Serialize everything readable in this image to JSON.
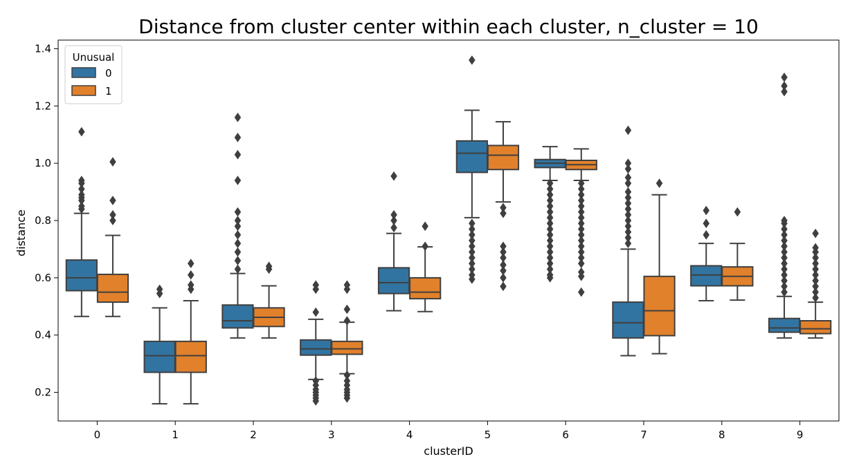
{
  "chart_data": {
    "type": "boxplot",
    "title": "Distance from cluster center within each cluster, n_cluster = 10",
    "xlabel": "clusterID",
    "ylabel": "distance",
    "ylim": [
      0.1,
      1.43
    ],
    "yticks": [
      "0.2",
      "0.4",
      "0.6",
      "0.8",
      "1.0",
      "1.2",
      "1.4"
    ],
    "categories": [
      "0",
      "1",
      "2",
      "3",
      "4",
      "5",
      "6",
      "7",
      "8",
      "9"
    ],
    "grid": false,
    "legend": {
      "title": "Unusual",
      "placement": "top-left",
      "entries": [
        "0",
        "1"
      ]
    },
    "series": [
      {
        "name": "0",
        "color": "#3274a1",
        "boxes": [
          {
            "whisker_low": 0.465,
            "q1": 0.555,
            "median": 0.6,
            "q3": 0.662,
            "whisker_high": 0.825,
            "outliers": [
              0.84,
              0.85,
              0.87,
              0.88,
              0.89,
              0.91,
              0.93,
              0.94,
              1.11
            ]
          },
          {
            "whisker_low": 0.16,
            "q1": 0.27,
            "median": 0.328,
            "q3": 0.378,
            "whisker_high": 0.495,
            "outliers": [
              0.545,
              0.56
            ]
          },
          {
            "whisker_low": 0.39,
            "q1": 0.425,
            "median": 0.45,
            "q3": 0.505,
            "whisker_high": 0.615,
            "outliers": [
              0.63,
              0.66,
              0.69,
              0.72,
              0.75,
              0.78,
              0.8,
              0.83,
              0.94,
              1.03,
              1.09,
              1.16
            ]
          },
          {
            "whisker_low": 0.245,
            "q1": 0.33,
            "median": 0.352,
            "q3": 0.383,
            "whisker_high": 0.455,
            "outliers": [
              0.48,
              0.56,
              0.575,
              0.24,
              0.225,
              0.21,
              0.2,
              0.19,
              0.18,
              0.17
            ]
          },
          {
            "whisker_low": 0.485,
            "q1": 0.545,
            "median": 0.583,
            "q3": 0.635,
            "whisker_high": 0.755,
            "outliers": [
              0.775,
              0.8,
              0.82,
              0.955
            ]
          },
          {
            "whisker_low": 0.81,
            "q1": 0.968,
            "median": 1.035,
            "q3": 1.078,
            "whisker_high": 1.185,
            "outliers": [
              1.36,
              0.79,
              0.77,
              0.75,
              0.73,
              0.71,
              0.69,
              0.67,
              0.65,
              0.63,
              0.61,
              0.595
            ]
          },
          {
            "whisker_low": 0.94,
            "q1": 0.985,
            "median": 1.0,
            "q3": 1.013,
            "whisker_high": 1.058,
            "outliers": [
              0.93,
              0.91,
              0.89,
              0.87,
              0.85,
              0.83,
              0.81,
              0.79,
              0.77,
              0.75,
              0.73,
              0.71,
              0.69,
              0.67,
              0.65,
              0.63,
              0.61,
              0.6
            ]
          },
          {
            "whisker_low": 0.328,
            "q1": 0.39,
            "median": 0.443,
            "q3": 0.515,
            "whisker_high": 0.7,
            "outliers": [
              0.72,
              0.74,
              0.76,
              0.78,
              0.8,
              0.82,
              0.84,
              0.86,
              0.88,
              0.9,
              0.93,
              0.95,
              0.98,
              1.0,
              1.115
            ]
          },
          {
            "whisker_low": 0.52,
            "q1": 0.572,
            "median": 0.61,
            "q3": 0.642,
            "whisker_high": 0.72,
            "outliers": [
              0.75,
              0.79,
              0.835
            ]
          },
          {
            "whisker_low": 0.39,
            "q1": 0.41,
            "median": 0.425,
            "q3": 0.458,
            "whisker_high": 0.535,
            "outliers": [
              0.55,
              0.57,
              0.59,
              0.61,
              0.63,
              0.65,
              0.67,
              0.69,
              0.71,
              0.73,
              0.75,
              0.77,
              0.79,
              0.8,
              1.25,
              1.27,
              1.3
            ]
          }
        ]
      },
      {
        "name": "1",
        "color": "#e1812c",
        "boxes": [
          {
            "whisker_low": 0.465,
            "q1": 0.515,
            "median": 0.55,
            "q3": 0.612,
            "whisker_high": 0.748,
            "outliers": [
              0.8,
              0.82,
              0.87,
              1.005
            ]
          },
          {
            "whisker_low": 0.16,
            "q1": 0.27,
            "median": 0.328,
            "q3": 0.378,
            "whisker_high": 0.52,
            "outliers": [
              0.56,
              0.575,
              0.61,
              0.65
            ]
          },
          {
            "whisker_low": 0.39,
            "q1": 0.43,
            "median": 0.462,
            "q3": 0.495,
            "whisker_high": 0.572,
            "outliers": [
              0.63,
              0.64
            ]
          },
          {
            "whisker_low": 0.265,
            "q1": 0.333,
            "median": 0.352,
            "q3": 0.378,
            "whisker_high": 0.445,
            "outliers": [
              0.45,
              0.49,
              0.56,
              0.575,
              0.26,
              0.24,
              0.225,
              0.21,
              0.2,
              0.19,
              0.18
            ]
          },
          {
            "whisker_low": 0.482,
            "q1": 0.527,
            "median": 0.55,
            "q3": 0.6,
            "whisker_high": 0.708,
            "outliers": [
              0.71,
              0.78
            ]
          },
          {
            "whisker_low": 0.865,
            "q1": 0.978,
            "median": 1.028,
            "q3": 1.062,
            "whisker_high": 1.145,
            "outliers": [
              0.845,
              0.825,
              0.71,
              0.69,
              0.67,
              0.645,
              0.625,
              0.6,
              0.57
            ]
          },
          {
            "whisker_low": 0.94,
            "q1": 0.978,
            "median": 0.995,
            "q3": 1.01,
            "whisker_high": 1.05,
            "outliers": [
              0.93,
              0.91,
              0.89,
              0.87,
              0.85,
              0.83,
              0.81,
              0.79,
              0.77,
              0.75,
              0.73,
              0.71,
              0.69,
              0.67,
              0.65,
              0.62,
              0.605,
              0.55
            ]
          },
          {
            "whisker_low": 0.335,
            "q1": 0.398,
            "median": 0.485,
            "q3": 0.605,
            "whisker_high": 0.89,
            "outliers": [
              0.93
            ]
          },
          {
            "whisker_low": 0.522,
            "q1": 0.572,
            "median": 0.605,
            "q3": 0.638,
            "whisker_high": 0.72,
            "outliers": [
              0.83
            ]
          },
          {
            "whisker_low": 0.39,
            "q1": 0.405,
            "median": 0.422,
            "q3": 0.45,
            "whisker_high": 0.515,
            "outliers": [
              0.53,
              0.55,
              0.57,
              0.59,
              0.61,
              0.63,
              0.65,
              0.67,
              0.69,
              0.705,
              0.755
            ]
          }
        ]
      }
    ]
  }
}
